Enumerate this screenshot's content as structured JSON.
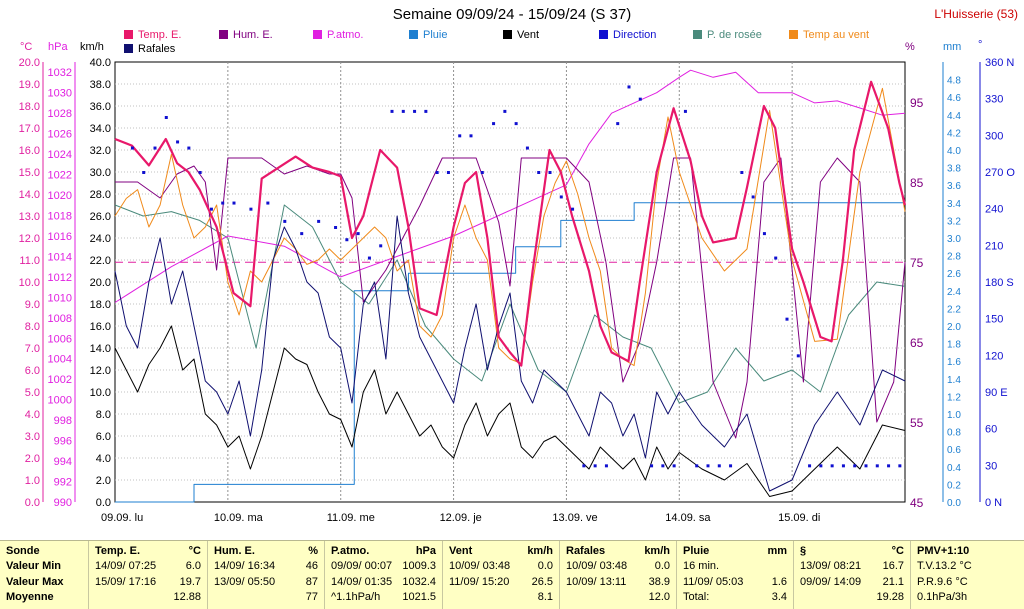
{
  "title": "Semaine 09/09/24 - 15/09/24 (S 37)",
  "station": "L'Huisserie (53)",
  "axes": {
    "temp_unit": "°C",
    "press_unit": "hPa",
    "wind_unit": "km/h",
    "hum_unit": "%",
    "rain_unit": "mm",
    "dir_unit": "°",
    "temp_ticks": [
      "20.0",
      "19.0",
      "18.0",
      "17.0",
      "16.0",
      "15.0",
      "14.0",
      "13.0",
      "12.0",
      "11.0",
      "10.0",
      "9.0",
      "8.0",
      "7.0",
      "6.0",
      "5.0",
      "4.0",
      "3.0",
      "2.0",
      "1.0",
      "0.0"
    ],
    "press_ticks": [
      "1032",
      "1030",
      "1028",
      "1026",
      "1024",
      "1022",
      "1020",
      "1018",
      "1016",
      "1014",
      "1012",
      "1010",
      "1008",
      "1006",
      "1004",
      "1002",
      "1000",
      "998",
      "996",
      "994",
      "992",
      "990"
    ],
    "wind_ticks": [
      "40.0",
      "38.0",
      "36.0",
      "34.0",
      "32.0",
      "30.0",
      "28.0",
      "26.0",
      "24.0",
      "22.0",
      "20.0",
      "18.0",
      "16.0",
      "14.0",
      "12.0",
      "10.0",
      "8.0",
      "6.0",
      "4.0",
      "2.0",
      "0.0"
    ],
    "hum_ticks": [
      "95",
      "85",
      "75",
      "65",
      "55",
      "45"
    ],
    "rain_ticks": [
      "4.8",
      "4.6",
      "4.4",
      "4.2",
      "4.0",
      "3.8",
      "3.6",
      "3.4",
      "3.2",
      "3.0",
      "2.8",
      "2.6",
      "2.4",
      "2.2",
      "2.0",
      "1.8",
      "1.6",
      "1.4",
      "1.2",
      "1.0",
      "0.8",
      "0.6",
      "0.4",
      "0.2",
      "0.0"
    ],
    "dir_ticks": [
      "360 N",
      "330",
      "300",
      "270 O",
      "240",
      "210",
      "180 S",
      "150",
      "120",
      "90 E",
      "60",
      "30",
      "0 N"
    ],
    "day_labels": [
      "09.09. lu",
      "10.09. ma",
      "11.09. me",
      "12.09. je",
      "13.09. ve",
      "14.09. sa",
      "15.09. di"
    ]
  },
  "legend": [
    {
      "name": "Temp. E.",
      "color": "#e8186a"
    },
    {
      "name": "Hum. E.",
      "color": "#800080"
    },
    {
      "name": "P.atmo.",
      "color": "#e020e0"
    },
    {
      "name": "Pluie",
      "color": "#1e7fd0"
    },
    {
      "name": "Vent",
      "color": "#000000"
    },
    {
      "name": "Direction",
      "color": "#1010d0"
    },
    {
      "name": "P. de rosée",
      "color": "#4a8a7c"
    },
    {
      "name": "Temp au vent",
      "color": "#f08a1a"
    },
    {
      "name": "Rafales",
      "color": "#101070"
    }
  ],
  "chart_data": {
    "type": "line",
    "x_unit": "day",
    "x_range": [
      0,
      7
    ],
    "series": [
      {
        "name": "Temp. E.",
        "axis": "temp",
        "ylim": [
          0,
          20
        ],
        "color": "#e8186a",
        "width": 2.2,
        "x": [
          0,
          0.15,
          0.3,
          0.45,
          0.55,
          0.65,
          0.75,
          0.9,
          1.05,
          1.2,
          1.3,
          1.45,
          1.6,
          1.75,
          1.9,
          2.0,
          2.1,
          2.2,
          2.35,
          2.5,
          2.6,
          2.7,
          2.85,
          3.0,
          3.1,
          3.2,
          3.3,
          3.4,
          3.5,
          3.6,
          3.7,
          3.85,
          3.95,
          4.05,
          4.2,
          4.3,
          4.4,
          4.55,
          4.65,
          4.8,
          4.95,
          5.1,
          5.2,
          5.3,
          5.5,
          5.6,
          5.75,
          5.85,
          6.0,
          6.1,
          6.25,
          6.35,
          6.45,
          6.55,
          6.7,
          6.85,
          6.95,
          7.0
        ],
        "y": [
          16.5,
          16.2,
          15.3,
          16.5,
          15.4,
          15.0,
          14.2,
          12.5,
          9.5,
          8.9,
          14.7,
          15.2,
          15.7,
          15.2,
          15.0,
          14.8,
          12.0,
          13.0,
          16.0,
          15.2,
          12.5,
          8.8,
          8.5,
          12.5,
          14.5,
          15.0,
          12.0,
          7.5,
          6.8,
          6.2,
          10.5,
          16.0,
          15.0,
          13.0,
          10.5,
          8.0,
          6.8,
          6.4,
          10.0,
          15.0,
          17.9,
          15.5,
          13.0,
          11.8,
          12.0,
          14.3,
          18.0,
          17.0,
          11.5,
          10.0,
          7.5,
          7.3,
          11.0,
          16.0,
          19.1,
          17.0,
          14.5,
          13.5
        ]
      },
      {
        "name": "Temp au vent",
        "axis": "temp",
        "ylim": [
          0,
          20
        ],
        "color": "#f08a1a",
        "width": 1,
        "x": [
          0,
          0.1,
          0.2,
          0.3,
          0.4,
          0.5,
          0.6,
          0.7,
          0.8,
          0.9,
          1.0,
          1.1,
          1.2,
          1.3,
          1.4,
          1.5,
          1.6,
          1.7,
          1.8,
          1.9,
          2.0,
          2.1,
          2.2,
          2.3,
          2.4,
          2.5,
          2.6,
          2.7,
          2.8,
          2.9,
          3.0,
          3.1,
          3.2,
          3.3,
          3.4,
          3.5,
          3.6,
          3.7,
          3.8,
          3.9,
          4.0,
          4.1,
          4.2,
          4.3,
          4.4,
          4.5,
          4.6,
          4.7,
          4.8,
          4.9,
          5.0,
          5.2,
          5.4,
          5.6,
          5.8,
          6.0,
          6.2,
          6.4,
          6.6,
          6.8,
          7.0
        ],
        "y": [
          13.0,
          13.8,
          14.2,
          12.5,
          13.5,
          15.8,
          13.5,
          12.0,
          12.5,
          13.5,
          10.0,
          8.5,
          10.5,
          10.0,
          11.0,
          12.0,
          11.5,
          10.8,
          11.0,
          11.5,
          11.0,
          11.5,
          12.0,
          12.5,
          12.0,
          10.5,
          11.0,
          8.0,
          7.5,
          8.5,
          12.0,
          13.5,
          12.0,
          11.0,
          7.0,
          6.5,
          6.3,
          10.0,
          13.0,
          14.5,
          15.5,
          14.0,
          12.0,
          10.5,
          7.0,
          6.5,
          6.2,
          9.5,
          14.5,
          17.5,
          15.0,
          12.0,
          10.5,
          11.5,
          17.8,
          11.0,
          7.3,
          7.4,
          15.0,
          18.8,
          13.2
        ]
      },
      {
        "name": "P. de rosée",
        "axis": "temp",
        "ylim": [
          0,
          20
        ],
        "color": "#4a8a7c",
        "width": 1,
        "x": [
          0,
          0.25,
          0.5,
          0.75,
          1.0,
          1.25,
          1.5,
          1.75,
          2.0,
          2.25,
          2.5,
          2.75,
          3.0,
          3.25,
          3.5,
          3.75,
          4.0,
          4.25,
          4.5,
          4.75,
          5.0,
          5.25,
          5.5,
          5.75,
          6.0,
          6.25,
          6.5,
          6.75,
          7.0
        ],
        "y": [
          13.5,
          13.0,
          13.2,
          12.8,
          12.0,
          7.0,
          13.5,
          12.5,
          10.0,
          9.0,
          11.0,
          8.0,
          6.5,
          5.5,
          9.0,
          6.0,
          5.0,
          8.5,
          7.5,
          7.0,
          4.5,
          5.0,
          7.0,
          5.5,
          6.0,
          5.0,
          8.5,
          10.0,
          9.8
        ]
      },
      {
        "name": "Hum. E.",
        "axis": "hum",
        "ylim": [
          45,
          100
        ],
        "color": "#800080",
        "width": 1,
        "x": [
          0,
          0.2,
          0.4,
          0.55,
          0.7,
          0.8,
          0.9,
          1.0,
          1.1,
          1.3,
          1.5,
          1.7,
          1.9,
          2.0,
          2.1,
          2.2,
          2.4,
          2.55,
          2.7,
          2.8,
          2.9,
          3.0,
          3.1,
          3.2,
          3.4,
          3.5,
          3.6,
          3.8,
          4.0,
          4.2,
          4.35,
          4.5,
          4.65,
          4.8,
          4.95,
          5.1,
          5.3,
          5.5,
          5.6,
          5.75,
          5.9,
          6.1,
          6.25,
          6.4,
          6.6,
          6.75,
          6.9,
          7.0
        ],
        "y": [
          85,
          85,
          83,
          86,
          87,
          85,
          74,
          88,
          88,
          88,
          86,
          87,
          86,
          86,
          83,
          70,
          74,
          78,
          82,
          85,
          88,
          88,
          88,
          88,
          80,
          72,
          88,
          88,
          88,
          85,
          75,
          60,
          65,
          75,
          88,
          88,
          60,
          53,
          60,
          85,
          88,
          60,
          85,
          88,
          85,
          55,
          60,
          75
        ]
      },
      {
        "name": "P.atmo.",
        "axis": "press",
        "ylim": [
          990,
          1033
        ],
        "color": "#e020e0",
        "width": 1,
        "x": [
          0,
          0.5,
          1.0,
          1.5,
          2.0,
          2.5,
          3.0,
          3.5,
          4.0,
          4.2,
          4.4,
          4.6,
          4.8,
          5.0,
          5.1,
          5.3,
          5.5,
          5.7,
          6.0,
          6.2,
          6.4,
          6.6,
          6.8,
          7.0
        ],
        "y": [
          1009.5,
          1013,
          1016,
          1015,
          1012,
          1014,
          1016,
          1018.5,
          1021,
          1025,
          1028,
          1029,
          1030,
          1031.5,
          1032.2,
          1031.5,
          1032,
          1030,
          1030,
          1029,
          1029.2,
          1028.5,
          1027.8,
          1028
        ]
      },
      {
        "name": "Vent",
        "axis": "wind",
        "ylim": [
          0,
          40
        ],
        "color": "#000000",
        "width": 1,
        "x": [
          0,
          0.1,
          0.2,
          0.3,
          0.4,
          0.5,
          0.6,
          0.7,
          0.8,
          0.9,
          1.0,
          1.1,
          1.2,
          1.3,
          1.4,
          1.5,
          1.6,
          1.7,
          1.8,
          1.9,
          2.0,
          2.1,
          2.2,
          2.3,
          2.4,
          2.5,
          2.6,
          2.7,
          2.8,
          2.9,
          3.0,
          3.1,
          3.2,
          3.3,
          3.4,
          3.5,
          3.6,
          3.7,
          3.8,
          3.9,
          4.0,
          4.1,
          4.2,
          4.3,
          4.4,
          4.5,
          4.6,
          4.7,
          4.8,
          4.9,
          5.0,
          5.2,
          5.4,
          5.6,
          5.8,
          6.0,
          6.2,
          6.4,
          6.6,
          6.8,
          7.0
        ],
        "y": [
          14.0,
          12.0,
          10.0,
          12.5,
          14.0,
          16.0,
          12.0,
          13.0,
          8.0,
          7.0,
          5.0,
          6.0,
          3.0,
          6.0,
          10.0,
          14.0,
          13.0,
          12.5,
          10.0,
          8.0,
          7.5,
          5.0,
          10.0,
          12.0,
          8.0,
          10.0,
          8.0,
          6.0,
          7.0,
          5.0,
          4.0,
          7.0,
          9.0,
          6.0,
          8.0,
          9.0,
          5.0,
          4.0,
          5.5,
          6.0,
          5.0,
          4.0,
          3.0,
          5.0,
          4.0,
          3.0,
          4.0,
          2.0,
          5.0,
          3.0,
          4.5,
          3.0,
          2.0,
          3.5,
          0.5,
          1.0,
          3.0,
          5.0,
          3.0,
          7.0,
          6.5
        ]
      },
      {
        "name": "Rafales",
        "axis": "wind",
        "ylim": [
          0,
          40
        ],
        "color": "#101070",
        "width": 1,
        "x": [
          0,
          0.1,
          0.2,
          0.3,
          0.4,
          0.5,
          0.6,
          0.7,
          0.8,
          0.9,
          1.0,
          1.1,
          1.2,
          1.3,
          1.4,
          1.5,
          1.6,
          1.7,
          1.8,
          1.9,
          2.0,
          2.1,
          2.2,
          2.3,
          2.4,
          2.5,
          2.6,
          2.7,
          2.8,
          2.9,
          3.0,
          3.1,
          3.2,
          3.3,
          3.4,
          3.5,
          3.6,
          3.7,
          3.8,
          3.9,
          4.0,
          4.1,
          4.2,
          4.3,
          4.4,
          4.5,
          4.6,
          4.7,
          4.8,
          4.9,
          5.0,
          5.2,
          5.4,
          5.6,
          5.8,
          6.0,
          6.2,
          6.4,
          6.6,
          6.8,
          7.0
        ],
        "y": [
          21.0,
          16.0,
          14.0,
          20.0,
          24.0,
          18.0,
          21.0,
          16.0,
          11.0,
          10.0,
          8.0,
          11.0,
          6.0,
          12.0,
          22.0,
          25.0,
          23.0,
          20.0,
          19.0,
          15.0,
          14.0,
          9.0,
          18.0,
          20.0,
          13.0,
          26.0,
          19.0,
          15.0,
          13.0,
          11.0,
          9.0,
          14.0,
          18.0,
          12.0,
          16.0,
          19.0,
          11.0,
          9.0,
          12.0,
          11.0,
          10.0,
          8.0,
          6.0,
          10.0,
          9.0,
          6.0,
          8.0,
          4.0,
          10.0,
          8.0,
          10.0,
          7.0,
          5.0,
          8.0,
          1.0,
          2.0,
          7.0,
          10.0,
          7.0,
          12.0,
          11.0
        ]
      },
      {
        "name": "Pluie",
        "axis": "rain",
        "ylim": [
          0,
          5
        ],
        "color": "#1e7fd0",
        "width": 1,
        "step": true,
        "x": [
          0,
          0.68,
          0.7,
          2.1,
          2.12,
          2.6,
          3.5,
          3.55,
          3.9,
          3.95,
          4.55,
          4.6,
          7.0
        ],
        "y": [
          0,
          0,
          0.2,
          0.2,
          2.4,
          2.6,
          2.6,
          2.9,
          2.9,
          3.2,
          3.2,
          3.4,
          3.4
        ]
      }
    ],
    "direction_points": {
      "axis": "dir",
      "ylim": [
        0,
        360
      ],
      "color": "#1010d0",
      "x": [
        0.15,
        0.25,
        0.35,
        0.45,
        0.55,
        0.65,
        0.75,
        0.85,
        0.95,
        1.05,
        1.2,
        1.35,
        1.5,
        1.65,
        1.8,
        1.95,
        2.05,
        2.15,
        2.25,
        2.35,
        2.45,
        2.55,
        2.65,
        2.75,
        2.85,
        2.95,
        3.05,
        3.15,
        3.25,
        3.35,
        3.45,
        3.55,
        3.65,
        3.75,
        3.85,
        3.95,
        4.05,
        4.15,
        4.25,
        4.35,
        4.45,
        4.55,
        4.65,
        4.75,
        4.85,
        4.95,
        5.05,
        5.15,
        5.25,
        5.35,
        5.45,
        5.55,
        5.65,
        5.75,
        5.85,
        5.95,
        6.05,
        6.15,
        6.25,
        6.35,
        6.45,
        6.55,
        6.65,
        6.75,
        6.85,
        6.95
      ],
      "y": [
        290,
        270,
        290,
        315,
        295,
        290,
        270,
        240,
        245,
        245,
        240,
        245,
        230,
        220,
        230,
        225,
        215,
        220,
        200,
        210,
        320,
        320,
        320,
        320,
        270,
        270,
        300,
        300,
        270,
        310,
        320,
        310,
        290,
        270,
        270,
        250,
        240,
        30,
        30,
        30,
        310,
        340,
        330,
        30,
        30,
        30,
        320,
        30,
        30,
        30,
        30,
        270,
        250,
        220,
        200,
        150,
        120,
        30,
        30,
        30,
        30,
        30,
        30,
        30,
        30,
        30
      ]
    }
  },
  "stats": [
    {
      "header": "Sonde",
      "unit": "",
      "width": 88,
      "rows": [
        [
          "Valeur Min",
          ""
        ],
        [
          "Valeur Max",
          ""
        ],
        [
          "Moyenne",
          ""
        ]
      ]
    },
    {
      "header": "Temp. E.",
      "unit": "°C",
      "width": 119,
      "rows": [
        [
          "14/09/ 07:25",
          "6.0"
        ],
        [
          "15/09/ 17:16",
          "19.7"
        ],
        [
          "",
          "12.88"
        ]
      ]
    },
    {
      "header": "Hum. E.",
      "unit": "%",
      "width": 117,
      "rows": [
        [
          "14/09/ 16:34",
          "46"
        ],
        [
          "13/09/ 05:50",
          "87"
        ],
        [
          "",
          "77"
        ]
      ]
    },
    {
      "header": "P.atmo.",
      "unit": "hPa",
      "width": 118,
      "rows": [
        [
          "09/09/ 00:07",
          "1009.3"
        ],
        [
          "14/09/ 01:35",
          "1032.4"
        ],
        [
          "^1.1hPa/h",
          "1021.5"
        ]
      ]
    },
    {
      "header": "Vent",
      "unit": "km/h",
      "width": 117,
      "rows": [
        [
          "10/09/ 03:48",
          "0.0"
        ],
        [
          "11/09/ 15:20",
          "26.5"
        ],
        [
          "",
          "8.1"
        ]
      ]
    },
    {
      "header": "Rafales",
      "unit": "km/h",
      "width": 117,
      "rows": [
        [
          "10/09/ 03:48",
          "0.0"
        ],
        [
          "10/09/ 13:11",
          "38.9"
        ],
        [
          "",
          "12.0"
        ]
      ]
    },
    {
      "header": "Pluie",
      "unit": "mm",
      "width": 117,
      "rows": [
        [
          "16 min.",
          ""
        ],
        [
          "11/09/ 05:03",
          "1.6"
        ],
        [
          "Total:",
          "3.4"
        ]
      ]
    },
    {
      "header": "§",
      "unit": "°C",
      "width": 117,
      "rows": [
        [
          "13/09/ 08:21",
          "16.7"
        ],
        [
          "09/09/ 14:09",
          "21.1"
        ],
        [
          "",
          "19.28"
        ]
      ]
    },
    {
      "header": "PMV+1:10",
      "unit": "",
      "width": 114,
      "rows": [
        [
          "T.V.13.2 °C",
          ""
        ],
        [
          "P.R.9.6 °C",
          ""
        ],
        [
          "0.1hPa/3h",
          ""
        ]
      ]
    }
  ]
}
